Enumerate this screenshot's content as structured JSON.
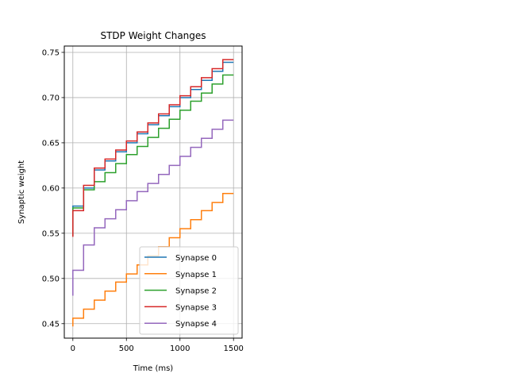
{
  "chart_data": {
    "type": "line",
    "step": true,
    "title": "STDP Weight Changes",
    "xlabel": "Time (ms)",
    "ylabel": "Synaptic weight",
    "xlim": [
      -80,
      1580
    ],
    "ylim": [
      0.434,
      0.757
    ],
    "xticks": [
      0,
      500,
      1000,
      1500
    ],
    "xtick_labels": [
      "0",
      "500",
      "1000",
      "1500"
    ],
    "yticks": [
      0.45,
      0.5,
      0.55,
      0.6,
      0.65,
      0.7,
      0.75
    ],
    "ytick_labels": [
      "0.45",
      "0.50",
      "0.55",
      "0.60",
      "0.65",
      "0.70",
      "0.75"
    ],
    "grid": true,
    "legend_position": "lower-right",
    "step_times": [
      0,
      100,
      200,
      300,
      400,
      500,
      600,
      700,
      800,
      900,
      1000,
      1100,
      1200,
      1300,
      1400,
      1500
    ],
    "series": [
      {
        "name": "Synapse 0",
        "color": "#1f77b4",
        "start": 0.547,
        "values": [
          0.58,
          0.6,
          0.62,
          0.63,
          0.64,
          0.65,
          0.66,
          0.67,
          0.68,
          0.69,
          0.7,
          0.709,
          0.719,
          0.729,
          0.739,
          0.739
        ]
      },
      {
        "name": "Synapse 1",
        "color": "#ff7f0e",
        "start": 0.447,
        "values": [
          0.456,
          0.466,
          0.476,
          0.486,
          0.496,
          0.505,
          0.515,
          0.525,
          0.535,
          0.545,
          0.555,
          0.565,
          0.575,
          0.584,
          0.594,
          0.594
        ]
      },
      {
        "name": "Synapse 2",
        "color": "#2ca02c",
        "start": 0.547,
        "values": [
          0.578,
          0.598,
          0.607,
          0.617,
          0.627,
          0.637,
          0.646,
          0.656,
          0.666,
          0.676,
          0.686,
          0.696,
          0.705,
          0.715,
          0.725,
          0.725
        ]
      },
      {
        "name": "Synapse 3",
        "color": "#d62728",
        "start": 0.546,
        "values": [
          0.575,
          0.603,
          0.622,
          0.632,
          0.642,
          0.652,
          0.662,
          0.672,
          0.682,
          0.692,
          0.702,
          0.712,
          0.722,
          0.732,
          0.742,
          0.742
        ]
      },
      {
        "name": "Synapse 4",
        "color": "#9467bd",
        "start": 0.481,
        "values": [
          0.509,
          0.537,
          0.556,
          0.566,
          0.576,
          0.586,
          0.596,
          0.605,
          0.615,
          0.625,
          0.635,
          0.645,
          0.655,
          0.665,
          0.675,
          0.675
        ]
      }
    ]
  }
}
